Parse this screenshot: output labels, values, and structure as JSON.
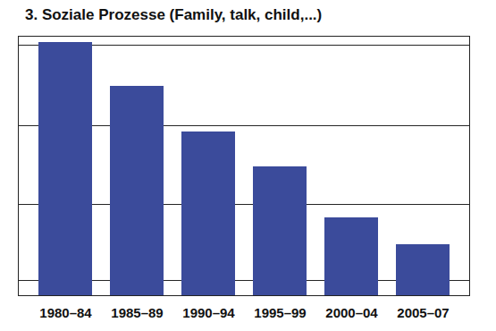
{
  "chart_data": {
    "type": "bar",
    "title": "3. Soziale Prozesse (Family, talk, child,...)",
    "categories": [
      "1980–84",
      "1985–89",
      "1990–94",
      "1995–99",
      "2000–04",
      "2005–07"
    ],
    "values": [
      28.3,
      23.4,
      18.3,
      14.4,
      8.7,
      5.7
    ],
    "color": "#3b4b9b",
    "ylim": [
      0,
      29
    ],
    "yticks": [
      1.7,
      10.2,
      19,
      28
    ],
    "grid": true,
    "tick_labels": "x"
  }
}
